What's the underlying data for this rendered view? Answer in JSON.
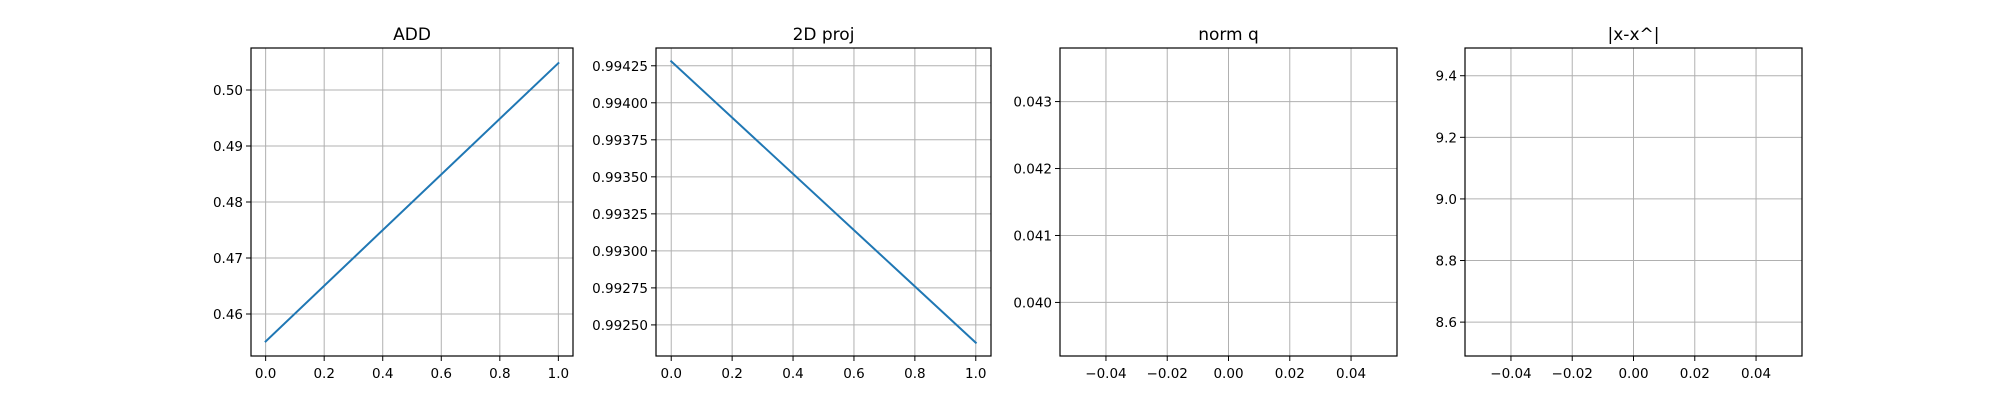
{
  "chart_data": [
    {
      "type": "line",
      "title": "ADD",
      "xlabel": "",
      "ylabel": "",
      "xlim": [
        -0.05,
        1.05
      ],
      "ylim": [
        0.4525,
        0.5075
      ],
      "xticks": [
        0.0,
        0.2,
        0.4,
        0.6,
        0.8,
        1.0
      ],
      "xtick_labels": [
        "0.0",
        "0.2",
        "0.4",
        "0.6",
        "0.8",
        "1.0"
      ],
      "yticks": [
        0.46,
        0.47,
        0.48,
        0.49,
        0.5
      ],
      "ytick_labels": [
        "0.46",
        "0.47",
        "0.48",
        "0.49",
        "0.50"
      ],
      "grid": true,
      "series": [
        {
          "x": [
            0,
            1
          ],
          "values": [
            0.4551,
            0.5048
          ],
          "color": "#1f77b4"
        }
      ]
    },
    {
      "type": "line",
      "title": "2D proj",
      "xlabel": "",
      "ylabel": "",
      "xlim": [
        -0.05,
        1.05
      ],
      "ylim": [
        0.99229,
        0.99437
      ],
      "xticks": [
        0.0,
        0.2,
        0.4,
        0.6,
        0.8,
        1.0
      ],
      "xtick_labels": [
        "0.0",
        "0.2",
        "0.4",
        "0.6",
        "0.8",
        "1.0"
      ],
      "yticks": [
        0.9925,
        0.99275,
        0.993,
        0.99325,
        0.9935,
        0.99375,
        0.994,
        0.99425
      ],
      "ytick_labels": [
        "0.99250",
        "0.99275",
        "0.99300",
        "0.99325",
        "0.99350",
        "0.99375",
        "0.99400",
        "0.99425"
      ],
      "grid": true,
      "series": [
        {
          "x": [
            0,
            1
          ],
          "values": [
            0.99428,
            0.99238
          ],
          "color": "#1f77b4"
        }
      ]
    },
    {
      "type": "line",
      "title": "norm q",
      "xlabel": "",
      "ylabel": "",
      "xlim": [
        -0.055,
        0.055
      ],
      "ylim": [
        0.0392,
        0.0438
      ],
      "xticks": [
        -0.04,
        -0.02,
        0.0,
        0.02,
        0.04
      ],
      "xtick_labels": [
        "−0.04",
        "−0.02",
        "0.00",
        "0.02",
        "0.04"
      ],
      "yticks": [
        0.04,
        0.041,
        0.042,
        0.043
      ],
      "ytick_labels": [
        "0.040",
        "0.041",
        "0.042",
        "0.043"
      ],
      "grid": true,
      "series": []
    },
    {
      "type": "line",
      "title": "|x-x^|",
      "xlabel": "",
      "ylabel": "",
      "xlim": [
        -0.055,
        0.055
      ],
      "ylim": [
        8.49,
        9.49
      ],
      "xticks": [
        -0.04,
        -0.02,
        0.0,
        0.02,
        0.04
      ],
      "xtick_labels": [
        "−0.04",
        "−0.02",
        "0.00",
        "0.02",
        "0.04"
      ],
      "yticks": [
        8.6,
        8.8,
        9.0,
        9.2,
        9.4
      ],
      "ytick_labels": [
        "8.6",
        "8.8",
        "9.0",
        "9.2",
        "9.4"
      ],
      "grid": true,
      "series": []
    }
  ]
}
